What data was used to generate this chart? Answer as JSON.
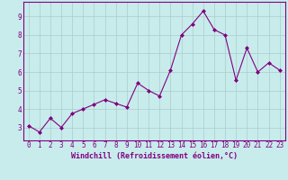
{
  "x": [
    0,
    1,
    2,
    3,
    4,
    5,
    6,
    7,
    8,
    9,
    10,
    11,
    12,
    13,
    14,
    15,
    16,
    17,
    18,
    19,
    20,
    21,
    22,
    23
  ],
  "y": [
    3.1,
    2.75,
    3.5,
    3.0,
    3.75,
    4.0,
    4.25,
    4.5,
    4.3,
    4.1,
    5.4,
    5.0,
    4.7,
    6.1,
    8.0,
    8.6,
    9.3,
    8.3,
    8.0,
    5.55,
    7.3,
    6.0,
    6.5,
    6.1
  ],
  "line_color": "#800080",
  "marker": "D",
  "marker_size": 2.0,
  "bg_color": "#c8ecec",
  "grid_color": "#aacccc",
  "xlabel": "Windchill (Refroidissement éolien,°C)",
  "xlabel_color": "#800080",
  "xlabel_fontsize": 6.0,
  "tick_color": "#800080",
  "tick_fontsize": 5.5,
  "ylim": [
    2.3,
    9.8
  ],
  "xlim": [
    -0.5,
    23.5
  ],
  "yticks": [
    3,
    4,
    5,
    6,
    7,
    8,
    9
  ],
  "xticks": [
    0,
    1,
    2,
    3,
    4,
    5,
    6,
    7,
    8,
    9,
    10,
    11,
    12,
    13,
    14,
    15,
    16,
    17,
    18,
    19,
    20,
    21,
    22,
    23
  ],
  "spine_color": "#800080",
  "linewidth": 0.8
}
